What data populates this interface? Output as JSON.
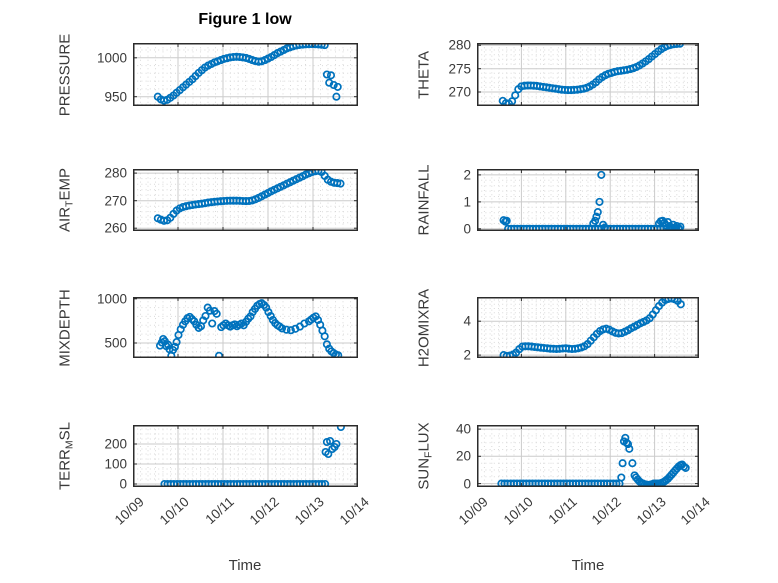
{
  "figure": {
    "title": "Figure 1 low",
    "xlabel": "Time"
  },
  "style": {
    "marker_color": "#0072BD",
    "axis_color": "#2b2b2b",
    "major_grid_color": "#cbcbcb",
    "minor_grid_color": "#d9d9d9",
    "text_color": "#3a3a3a",
    "background": "#ffffff"
  },
  "x_axis": {
    "lim": [
      0,
      5
    ],
    "tick_values": [
      0,
      1,
      2,
      3,
      4,
      5
    ],
    "tick_labels": [
      "10/09",
      "10/10",
      "10/11",
      "10/12",
      "10/13",
      "10/14"
    ],
    "minor_step": 0.1667
  },
  "chart_data": [
    {
      "name": "pressure",
      "type": "scatter",
      "ylabel_parts": [
        {
          "text": "PRESSURE",
          "sub": false
        }
      ],
      "ylim": [
        938,
        1019
      ],
      "yticks": [
        950,
        1000
      ],
      "ytick_labels": [
        "950",
        "1000"
      ],
      "y_minor_step": 10,
      "x": [
        0.55,
        0.62,
        0.69,
        0.76,
        0.83,
        0.9,
        0.97,
        1.04,
        1.11,
        1.18,
        1.25,
        1.32,
        1.39,
        1.46,
        1.53,
        1.6,
        1.67,
        1.74,
        1.81,
        1.88,
        1.95,
        2.02,
        2.09,
        2.16,
        2.23,
        2.3,
        2.37,
        2.44,
        2.51,
        2.58,
        2.65,
        2.72,
        2.79,
        2.86,
        2.93,
        3.0,
        3.07,
        3.14,
        3.21,
        3.28,
        3.35,
        3.42,
        3.49,
        3.56,
        3.63,
        3.7,
        3.77,
        3.84,
        3.91,
        3.98,
        4.05,
        4.12,
        4.19,
        4.26,
        4.31,
        4.36,
        4.4,
        4.46,
        4.52,
        4.55
      ],
      "y": [
        950,
        946.5,
        945,
        946,
        948.5,
        951.5,
        955,
        958.5,
        962,
        965.5,
        969,
        972.5,
        976.5,
        980.5,
        984,
        987.5,
        990,
        992,
        994,
        995.5,
        997,
        998.5,
        999.5,
        1000.5,
        1001,
        1001.2,
        1001,
        1000.5,
        999.8,
        998.5,
        997,
        995.8,
        995,
        995.5,
        997,
        999,
        1001,
        1003.5,
        1006,
        1008,
        1010,
        1012,
        1013.5,
        1014.8,
        1015.8,
        1016.5,
        1017,
        1017.3,
        1017.5,
        1017.6,
        1017.5,
        1017.2,
        1016.8,
        1016.3,
        978.5,
        968,
        977.5,
        965,
        950,
        962.5
      ]
    },
    {
      "name": "theta",
      "type": "scatter",
      "ylabel_parts": [
        {
          "text": "THETA",
          "sub": false
        }
      ],
      "ylim": [
        267,
        280.5
      ],
      "yticks": [
        270,
        275,
        280
      ],
      "ytick_labels": [
        "270",
        "275",
        "280"
      ],
      "y_minor_step": 1,
      "x": [
        0.58,
        0.65,
        0.72,
        0.79,
        0.86,
        0.93,
        1.0,
        1.07,
        1.14,
        1.21,
        1.28,
        1.35,
        1.42,
        1.49,
        1.56,
        1.63,
        1.7,
        1.77,
        1.84,
        1.91,
        1.98,
        2.05,
        2.12,
        2.19,
        2.26,
        2.33,
        2.4,
        2.47,
        2.54,
        2.61,
        2.68,
        2.75,
        2.82,
        2.89,
        2.96,
        3.03,
        3.1,
        3.17,
        3.24,
        3.31,
        3.38,
        3.45,
        3.52,
        3.59,
        3.66,
        3.73,
        3.8,
        3.87,
        3.94,
        4.01,
        4.08,
        4.15,
        4.22,
        4.29,
        4.36,
        4.43,
        4.5,
        4.57
      ],
      "y": [
        268.1,
        267.6,
        267.5,
        268.0,
        269.3,
        270.6,
        271.2,
        271.35,
        271.4,
        271.4,
        271.35,
        271.3,
        271.2,
        271.1,
        271.0,
        270.9,
        270.8,
        270.7,
        270.6,
        270.5,
        270.45,
        270.4,
        270.4,
        270.45,
        270.5,
        270.6,
        270.7,
        270.9,
        271.2,
        271.6,
        272.1,
        272.7,
        273.2,
        273.6,
        273.9,
        274.1,
        274.3,
        274.45,
        274.55,
        274.65,
        274.75,
        274.9,
        275.1,
        275.35,
        275.7,
        276.1,
        276.55,
        277.05,
        277.6,
        278.15,
        278.7,
        279.2,
        279.6,
        279.9,
        280.1,
        280.25,
        280.3,
        280.35
      ]
    },
    {
      "name": "air_temp",
      "type": "scatter",
      "ylabel_parts": [
        {
          "text": "AIR",
          "sub": false
        },
        {
          "text": "T",
          "sub": true
        },
        {
          "text": "EMP",
          "sub": false
        }
      ],
      "ylim": [
        259,
        281.5
      ],
      "yticks": [
        260,
        270,
        280
      ],
      "ytick_labels": [
        "260",
        "270",
        "280"
      ],
      "y_minor_step": 2,
      "x": [
        0.55,
        0.62,
        0.69,
        0.76,
        0.83,
        0.9,
        0.97,
        1.04,
        1.11,
        1.18,
        1.25,
        1.32,
        1.39,
        1.46,
        1.53,
        1.6,
        1.67,
        1.74,
        1.81,
        1.88,
        1.95,
        2.02,
        2.09,
        2.16,
        2.23,
        2.3,
        2.37,
        2.44,
        2.51,
        2.58,
        2.65,
        2.72,
        2.79,
        2.86,
        2.93,
        3.0,
        3.07,
        3.14,
        3.21,
        3.28,
        3.35,
        3.42,
        3.49,
        3.56,
        3.63,
        3.7,
        3.77,
        3.84,
        3.91,
        3.98,
        4.05,
        4.12,
        4.19,
        4.26,
        4.33,
        4.4,
        4.47,
        4.54,
        4.61
      ],
      "y": [
        263.6,
        263.1,
        262.7,
        262.9,
        263.8,
        265.2,
        266.4,
        267.2,
        267.7,
        268.0,
        268.25,
        268.45,
        268.6,
        268.75,
        268.9,
        269.1,
        269.3,
        269.45,
        269.6,
        269.7,
        269.8,
        269.9,
        269.95,
        270.0,
        270.0,
        270.0,
        269.95,
        269.9,
        269.85,
        269.9,
        270.1,
        270.5,
        271.0,
        271.6,
        272.2,
        272.8,
        273.4,
        273.95,
        274.5,
        275.05,
        275.6,
        276.15,
        276.7,
        277.25,
        277.8,
        278.35,
        278.9,
        279.45,
        279.95,
        280.4,
        280.7,
        280.85,
        280.4,
        279.0,
        277.6,
        276.9,
        276.5,
        276.4,
        276.2
      ]
    },
    {
      "name": "rainfall",
      "type": "scatter",
      "ylabel_parts": [
        {
          "text": "RAINFALL",
          "sub": false
        }
      ],
      "ylim": [
        -0.08,
        2.22
      ],
      "yticks": [
        0,
        1,
        2
      ],
      "ytick_labels": [
        "0",
        "1",
        "2"
      ],
      "y_minor_step": 0.2,
      "x": [
        0.6,
        0.64,
        0.67,
        0.7,
        0.77,
        0.84,
        0.91,
        0.98,
        1.05,
        1.12,
        1.19,
        1.26,
        1.33,
        1.4,
        1.47,
        1.54,
        1.61,
        1.68,
        1.75,
        1.82,
        1.89,
        1.96,
        2.03,
        2.1,
        2.17,
        2.24,
        2.31,
        2.38,
        2.45,
        2.52,
        2.59,
        2.66,
        2.73,
        2.8,
        2.87,
        2.94,
        3.01,
        3.08,
        3.15,
        3.22,
        3.29,
        3.36,
        3.43,
        3.5,
        3.57,
        3.64,
        3.71,
        3.78,
        3.85,
        3.92,
        3.99,
        4.06,
        4.13,
        4.2,
        4.27,
        4.34,
        4.41,
        4.48,
        4.55,
        2.62,
        2.66,
        2.69,
        2.72,
        2.76,
        2.8,
        2.84,
        2.88,
        4.1,
        4.14,
        4.18,
        4.22,
        4.26,
        4.3,
        4.34,
        4.38,
        4.42,
        4.46,
        4.5,
        4.54,
        4.58
      ],
      "y": [
        0.32,
        0.27,
        0.3,
        0,
        0,
        0,
        0,
        0,
        0,
        0,
        0,
        0,
        0,
        0,
        0,
        0,
        0,
        0,
        0,
        0,
        0,
        0,
        0,
        0,
        0,
        0,
        0,
        0,
        0,
        0,
        0,
        0,
        0,
        0,
        0,
        0,
        0,
        0,
        0,
        0,
        0,
        0,
        0,
        0,
        0,
        0,
        0,
        0,
        0,
        0,
        0,
        0,
        0,
        0,
        0,
        0,
        0,
        0,
        0,
        0.2,
        0.3,
        0.45,
        0.62,
        1.0,
        2.0,
        0.15,
        0.05,
        0.2,
        0.28,
        0.3,
        0.22,
        0.12,
        0.25,
        0.1,
        0.05,
        0.15,
        0.02,
        0.1,
        0.03,
        0.08
      ]
    },
    {
      "name": "mixdepth",
      "type": "scatter",
      "ylabel_parts": [
        {
          "text": "MIXDEPTH",
          "sub": false
        }
      ],
      "ylim": [
        330,
        1020
      ],
      "yticks": [
        500,
        1000
      ],
      "ytick_labels": [
        "500",
        "1000"
      ],
      "y_minor_step": 100,
      "x": [
        0.6,
        0.64,
        0.67,
        0.71,
        0.74,
        0.78,
        0.81,
        0.85,
        0.89,
        0.93,
        0.97,
        1.01,
        1.06,
        1.11,
        1.16,
        1.21,
        1.26,
        1.31,
        1.36,
        1.41,
        1.46,
        1.51,
        1.56,
        1.61,
        1.66,
        1.71,
        1.76,
        1.81,
        1.86,
        1.91,
        1.96,
        2.01,
        2.06,
        2.11,
        2.16,
        2.21,
        2.26,
        2.31,
        2.36,
        2.41,
        2.46,
        2.51,
        2.56,
        2.61,
        2.66,
        2.71,
        2.76,
        2.81,
        2.86,
        2.91,
        2.96,
        3.01,
        3.06,
        3.11,
        3.16,
        3.21,
        3.26,
        3.31,
        3.41,
        3.51,
        3.61,
        3.71,
        3.81,
        3.91,
        3.96,
        4.01,
        4.06,
        4.11,
        4.16,
        4.21,
        4.26,
        4.31,
        4.36,
        4.41,
        4.46,
        4.51,
        4.56
      ],
      "y": [
        470,
        505,
        545,
        520,
        465,
        480,
        430,
        355,
        420,
        455,
        510,
        590,
        655,
        705,
        745,
        780,
        795,
        770,
        745,
        705,
        670,
        690,
        755,
        805,
        900,
        865,
        720,
        860,
        830,
        355,
        680,
        700,
        720,
        700,
        685,
        700,
        710,
        690,
        705,
        720,
        700,
        740,
        775,
        800,
        850,
        885,
        920,
        940,
        950,
        930,
        900,
        850,
        805,
        760,
        725,
        700,
        685,
        665,
        650,
        645,
        660,
        685,
        720,
        745,
        765,
        785,
        800,
        760,
        705,
        640,
        575,
        485,
        435,
        405,
        385,
        370,
        360
      ]
    },
    {
      "name": "h2omixra",
      "type": "scatter",
      "ylabel_parts": [
        {
          "text": "H2OMIXRA",
          "sub": false
        }
      ],
      "ylim": [
        1.83,
        5.43
      ],
      "yticks": [
        2,
        4
      ],
      "ytick_labels": [
        "2",
        "4"
      ],
      "y_minor_step": 0.25,
      "x": [
        0.6,
        0.67,
        0.74,
        0.81,
        0.88,
        0.95,
        1.02,
        1.09,
        1.16,
        1.23,
        1.3,
        1.37,
        1.44,
        1.51,
        1.58,
        1.65,
        1.72,
        1.79,
        1.86,
        1.93,
        2.0,
        2.07,
        2.14,
        2.21,
        2.28,
        2.35,
        2.42,
        2.49,
        2.56,
        2.63,
        2.7,
        2.77,
        2.84,
        2.91,
        2.98,
        3.05,
        3.12,
        3.19,
        3.26,
        3.33,
        3.4,
        3.47,
        3.54,
        3.61,
        3.68,
        3.75,
        3.82,
        3.89,
        3.96,
        4.03,
        4.1,
        4.17,
        4.24,
        4.31,
        4.38,
        4.45,
        4.52,
        4.59
      ],
      "y": [
        2.0,
        1.95,
        1.97,
        2.03,
        2.15,
        2.35,
        2.5,
        2.52,
        2.52,
        2.5,
        2.48,
        2.46,
        2.44,
        2.42,
        2.4,
        2.38,
        2.37,
        2.36,
        2.37,
        2.39,
        2.4,
        2.38,
        2.36,
        2.37,
        2.4,
        2.45,
        2.52,
        2.65,
        2.85,
        3.05,
        3.25,
        3.42,
        3.52,
        3.56,
        3.5,
        3.4,
        3.32,
        3.28,
        3.3,
        3.38,
        3.47,
        3.58,
        3.68,
        3.78,
        3.88,
        3.96,
        4.05,
        4.18,
        4.4,
        4.65,
        4.9,
        5.1,
        5.25,
        5.32,
        5.35,
        5.3,
        5.2,
        5.0
      ]
    },
    {
      "name": "terr_msl",
      "type": "scatter",
      "ylabel_parts": [
        {
          "text": "TERR",
          "sub": false
        },
        {
          "text": "M",
          "sub": true
        },
        {
          "text": "SL",
          "sub": false
        }
      ],
      "ylim": [
        -15,
        295
      ],
      "yticks": [
        0,
        100,
        200
      ],
      "ytick_labels": [
        "0",
        "100",
        "200"
      ],
      "y_minor_step": 25,
      "x": [
        0.7,
        0.77,
        0.84,
        0.91,
        0.98,
        1.05,
        1.12,
        1.19,
        1.26,
        1.33,
        1.4,
        1.47,
        1.54,
        1.61,
        1.68,
        1.75,
        1.82,
        1.89,
        1.96,
        2.03,
        2.1,
        2.17,
        2.24,
        2.31,
        2.38,
        2.45,
        2.52,
        2.59,
        2.66,
        2.73,
        2.8,
        2.87,
        2.94,
        3.01,
        3.08,
        3.15,
        3.22,
        3.29,
        3.36,
        3.43,
        3.5,
        3.57,
        3.64,
        3.71,
        3.78,
        3.85,
        3.92,
        3.99,
        4.06,
        4.13,
        4.2,
        4.27,
        4.28,
        4.31,
        4.34,
        4.38,
        4.43,
        4.48,
        4.52,
        4.62
      ],
      "y": [
        0,
        0,
        0,
        0,
        0,
        0,
        0,
        0,
        0,
        0,
        0,
        0,
        0,
        0,
        0,
        0,
        0,
        0,
        0,
        0,
        0,
        0,
        0,
        0,
        0,
        0,
        0,
        0,
        0,
        0,
        0,
        0,
        0,
        0,
        0,
        0,
        0,
        0,
        0,
        0,
        0,
        0,
        0,
        0,
        0,
        0,
        0,
        0,
        0,
        0,
        0,
        0,
        160,
        210,
        150,
        215,
        175,
        185,
        200,
        285
      ]
    },
    {
      "name": "sun_flux",
      "type": "scatter",
      "ylabel_parts": [
        {
          "text": "SUN",
          "sub": false
        },
        {
          "text": "F",
          "sub": true
        },
        {
          "text": "LUX",
          "sub": false
        }
      ],
      "ylim": [
        -2.5,
        43
      ],
      "yticks": [
        0,
        20,
        40
      ],
      "ytick_labels": [
        "0",
        "20",
        "40"
      ],
      "y_minor_step": 5,
      "x": [
        0.55,
        0.62,
        0.69,
        0.76,
        0.83,
        0.9,
        0.97,
        1.04,
        1.11,
        1.18,
        1.25,
        1.32,
        1.39,
        1.46,
        1.53,
        1.6,
        1.67,
        1.74,
        1.81,
        1.88,
        1.95,
        2.02,
        2.09,
        2.16,
        2.23,
        2.3,
        2.37,
        2.44,
        2.51,
        2.58,
        2.65,
        2.72,
        2.79,
        2.86,
        2.93,
        3.0,
        3.07,
        3.14,
        3.21,
        3.25,
        3.28,
        3.31,
        3.34,
        3.37,
        3.4,
        3.43,
        3.5,
        3.55,
        3.58,
        3.62,
        3.66,
        3.7,
        3.74,
        3.78,
        3.82,
        3.86,
        3.9,
        3.94,
        3.98,
        4.02,
        4.06,
        4.1,
        4.14,
        4.18,
        4.22,
        4.26,
        4.3,
        4.34,
        4.38,
        4.42,
        4.46,
        4.5,
        4.54,
        4.58,
        4.62,
        4.66,
        4.7
      ],
      "y": [
        0,
        0,
        0,
        0,
        0,
        0,
        0,
        0,
        0,
        0,
        0,
        0,
        0,
        0,
        0,
        0,
        0,
        0,
        0,
        0,
        0,
        0,
        0,
        0,
        0,
        0,
        0,
        0,
        0,
        0,
        0,
        0,
        0,
        0,
        0,
        0,
        0,
        0,
        0,
        4.5,
        15,
        31,
        33.5,
        30,
        29,
        25.5,
        15,
        6,
        4.5,
        3,
        1.5,
        0.5,
        0,
        -0.5,
        -0.8,
        -1,
        -0.8,
        -0.5,
        0,
        0,
        0,
        0,
        0.3,
        0.8,
        1.5,
        2.5,
        3.5,
        5,
        6.5,
        8,
        9.5,
        11,
        12.5,
        13.5,
        14,
        12.5,
        11.5
      ]
    }
  ]
}
